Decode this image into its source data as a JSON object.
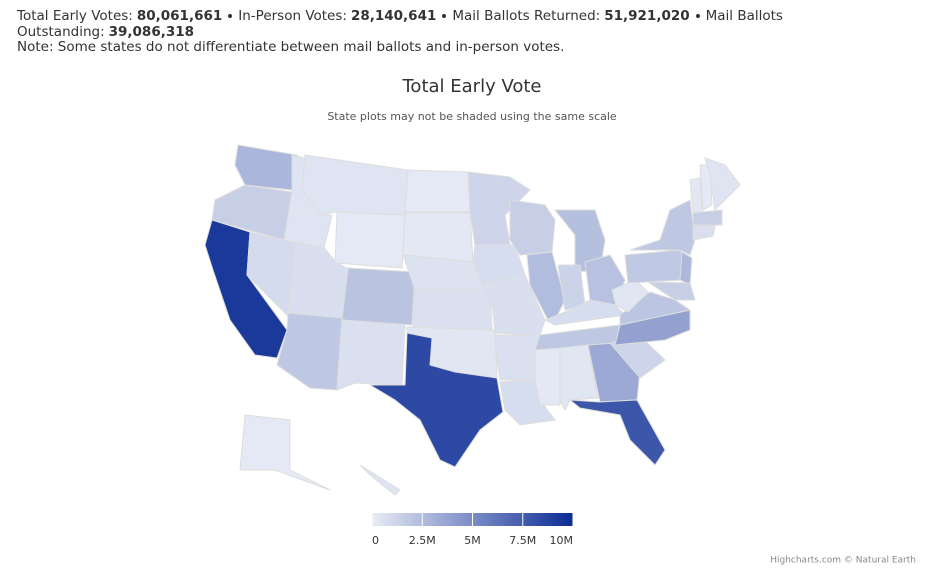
{
  "header": {
    "stats": [
      {
        "label": "Total Early Votes:",
        "value": "80,061,661"
      },
      {
        "label": "In-Person Votes:",
        "value": "28,140,641"
      },
      {
        "label": "Mail Ballots Returned:",
        "value": "51,921,020"
      },
      {
        "label": "Mail Ballots Outstanding:",
        "value": "39,086,318"
      }
    ],
    "note": "Note: Some states do not differentiate between mail ballots and in-person votes."
  },
  "chart_data": {
    "type": "map",
    "title": "Total Early Vote",
    "subtitle": "State plots may not be shaded using the same scale",
    "values": [
      2800000,
      1500000,
      9300000,
      900000,
      400000,
      400000,
      150000,
      700000,
      2100000,
      1900000,
      600000,
      150000,
      200000,
      500000,
      600000,
      300000,
      8500000,
      1200000,
      800000,
      700000,
      600000,
      800000,
      1500000,
      2500000,
      2300000,
      1300000,
      2200000,
      800000,
      1900000,
      200000,
      300000,
      3500000,
      7800000,
      1200000,
      3900000,
      2000000,
      300000,
      1800000,
      1900000,
      2700000,
      1500000,
      250000,
      150000,
      400000,
      1500000,
      700000,
      150000,
      400000
    ],
    "colorlim": [
      0,
      10000000
    ],
    "colorticks": [
      0,
      {
        "value": 2500000,
        "label": "2.5M"
      },
      {
        "value": 5000000,
        "label": "5M"
      },
      {
        "value": 7500000,
        "label": "7.5M"
      },
      {
        "value": 10000000,
        "label": "10M"
      }
    ],
    "color_range": [
      "#e8ecf6",
      "#0c2c94"
    ],
    "credits": "Highcharts.com © Natural Earth"
  }
}
